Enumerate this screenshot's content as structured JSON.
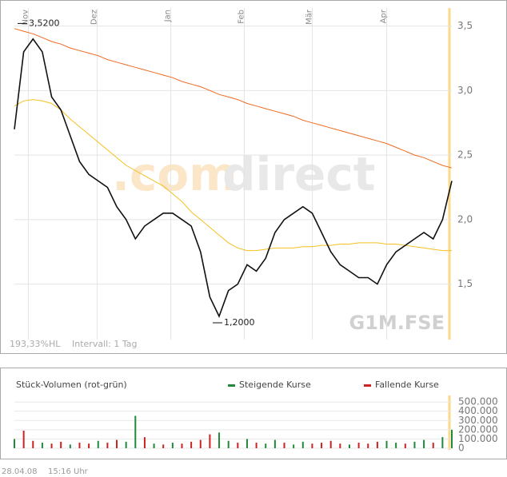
{
  "chart_data": [
    {
      "type": "line",
      "xlim": [
        0,
        47
      ],
      "xticks": [
        {
          "value": 1.5,
          "label": "Nov"
        },
        {
          "value": 8.9,
          "label": "Dez"
        },
        {
          "value": 16.8,
          "label": "Jan"
        },
        {
          "value": 24.7,
          "label": "Feb"
        },
        {
          "value": 32,
          "label": "Mär"
        },
        {
          "value": 40,
          "label": "Apr"
        }
      ],
      "ylim": [
        1.07,
        3.64
      ],
      "yticks": [
        {
          "value": 1.5,
          "label": "1,5"
        },
        {
          "value": 2.0,
          "label": "2,0"
        },
        {
          "value": 2.5,
          "label": "2,5"
        },
        {
          "value": 3.0,
          "label": "3,0"
        },
        {
          "value": 3.5,
          "label": "3,5"
        }
      ],
      "grid": true,
      "series": [
        {
          "color": "#f06a20",
          "values": [
            3.48,
            3.46,
            3.44,
            3.41,
            3.38,
            3.36,
            3.33,
            3.31,
            3.29,
            3.27,
            3.24,
            3.22,
            3.2,
            3.18,
            3.16,
            3.14,
            3.12,
            3.1,
            3.07,
            3.05,
            3.03,
            3.0,
            2.97,
            2.95,
            2.93,
            2.9,
            2.88,
            2.86,
            2.84,
            2.82,
            2.8,
            2.77,
            2.75,
            2.73,
            2.71,
            2.69,
            2.67,
            2.65,
            2.63,
            2.61,
            2.59,
            2.56,
            2.53,
            2.5,
            2.48,
            2.45,
            2.42,
            2.4
          ]
        },
        {
          "color": "#f5c020",
          "values": [
            2.88,
            2.92,
            2.93,
            2.92,
            2.9,
            2.85,
            2.78,
            2.72,
            2.66,
            2.6,
            2.54,
            2.48,
            2.42,
            2.38,
            2.34,
            2.3,
            2.26,
            2.2,
            2.14,
            2.06,
            2.0,
            1.94,
            1.88,
            1.82,
            1.78,
            1.76,
            1.76,
            1.77,
            1.78,
            1.78,
            1.78,
            1.79,
            1.79,
            1.8,
            1.8,
            1.81,
            1.81,
            1.82,
            1.82,
            1.82,
            1.81,
            1.81,
            1.8,
            1.79,
            1.78,
            1.77,
            1.76,
            1.76
          ]
        },
        {
          "color": "#111111",
          "values": [
            2.7,
            3.3,
            3.4,
            3.3,
            2.95,
            2.85,
            2.65,
            2.45,
            2.35,
            2.3,
            2.25,
            2.1,
            2.0,
            1.85,
            1.95,
            2.0,
            2.05,
            2.05,
            2.0,
            1.95,
            1.75,
            1.4,
            1.25,
            1.45,
            1.5,
            1.65,
            1.6,
            1.7,
            1.9,
            2.0,
            2.05,
            2.1,
            2.05,
            1.9,
            1.75,
            1.65,
            1.6,
            1.55,
            1.55,
            1.5,
            1.65,
            1.75,
            1.8,
            1.85,
            1.9,
            1.85,
            2.0,
            2.3
          ]
        }
      ],
      "annotations": [
        {
          "value": 3.52,
          "label": "3,5200"
        },
        {
          "value": 1.2,
          "label": "1,2000"
        }
      ],
      "info": "193,33%HL",
      "interval": "Intervall: 1 Tag",
      "watermark": [
        ".com",
        "direct"
      ],
      "symbol": "G1M.FSE"
    },
    {
      "type": "bar",
      "title": "Stück-Volumen (rot-grün)",
      "xlim": [
        0,
        47
      ],
      "ylim": [
        0,
        570000
      ],
      "yticks": [
        0,
        {
          "value": 100000,
          "label": "100.000"
        },
        {
          "value": 200000,
          "label": "200.000"
        },
        {
          "value": 300000,
          "label": "300.000"
        },
        {
          "value": 400000,
          "label": "400.000"
        },
        {
          "value": 500000,
          "label": "500.000"
        }
      ],
      "series": [
        {
          "name": "Steigende Kurse",
          "color": "#1f8a3a",
          "values": [
            100000,
            null,
            null,
            60000,
            null,
            null,
            40000,
            null,
            null,
            80000,
            null,
            null,
            70000,
            350000,
            null,
            50000,
            null,
            60000,
            null,
            null,
            null,
            null,
            170000,
            80000,
            null,
            100000,
            null,
            50000,
            90000,
            null,
            40000,
            70000,
            null,
            null,
            null,
            null,
            40000,
            null,
            null,
            null,
            80000,
            60000,
            null,
            70000,
            90000,
            null,
            120000,
            200000
          ]
        },
        {
          "name": "Fallende Kurse",
          "color": "#cc2222",
          "values": [
            null,
            190000,
            80000,
            null,
            50000,
            70000,
            null,
            60000,
            50000,
            null,
            60000,
            90000,
            null,
            null,
            120000,
            null,
            40000,
            null,
            50000,
            70000,
            90000,
            150000,
            null,
            null,
            60000,
            null,
            60000,
            null,
            null,
            60000,
            null,
            null,
            50000,
            60000,
            80000,
            50000,
            null,
            60000,
            50000,
            70000,
            null,
            null,
            50000,
            null,
            null,
            60000,
            null,
            null
          ]
        }
      ]
    }
  ],
  "footer": {
    "date": "28.04.08",
    "time": "15:16 Uhr"
  }
}
